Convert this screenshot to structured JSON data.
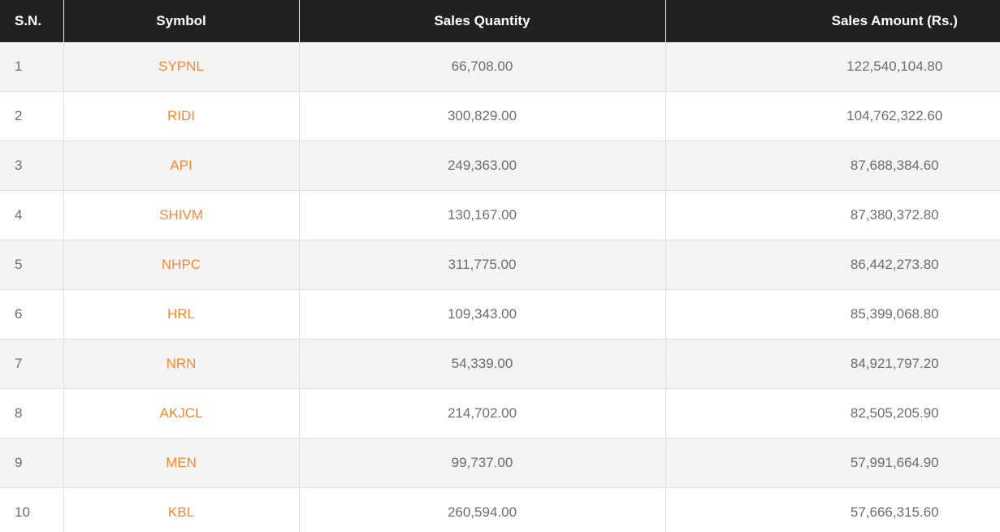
{
  "colors": {
    "header_bg": "#212121",
    "header_text": "#ffffff",
    "row_bg": "#ffffff",
    "row_alt_bg": "#f4f4f4",
    "divider": "#e0e0e0",
    "symbol_link": "#f7872d",
    "value_text": "#6d6d6d"
  },
  "table": {
    "columns": [
      {
        "id": "sn",
        "label": "S.N."
      },
      {
        "id": "symbol",
        "label": "Symbol"
      },
      {
        "id": "quantity",
        "label": "Sales Quantity"
      },
      {
        "id": "amount",
        "label": "Sales Amount (Rs.)"
      }
    ],
    "rows": [
      {
        "sn": "1",
        "symbol": "SYPNL",
        "quantity": "66,708.00",
        "amount": "122,540,104.80"
      },
      {
        "sn": "2",
        "symbol": "RIDI",
        "quantity": "300,829.00",
        "amount": "104,762,322.60"
      },
      {
        "sn": "3",
        "symbol": "API",
        "quantity": "249,363.00",
        "amount": "87,688,384.60"
      },
      {
        "sn": "4",
        "symbol": "SHIVM",
        "quantity": "130,167.00",
        "amount": "87,380,372.80"
      },
      {
        "sn": "5",
        "symbol": "NHPC",
        "quantity": "311,775.00",
        "amount": "86,442,273.80"
      },
      {
        "sn": "6",
        "symbol": "HRL",
        "quantity": "109,343.00",
        "amount": "85,399,068.80"
      },
      {
        "sn": "7",
        "symbol": "NRN",
        "quantity": "54,339.00",
        "amount": "84,921,797.20"
      },
      {
        "sn": "8",
        "symbol": "AKJCL",
        "quantity": "214,702.00",
        "amount": "82,505,205.90"
      },
      {
        "sn": "9",
        "symbol": "MEN",
        "quantity": "99,737.00",
        "amount": "57,991,664.90"
      },
      {
        "sn": "10",
        "symbol": "KBL",
        "quantity": "260,594.00",
        "amount": "57,666,315.60"
      }
    ]
  }
}
